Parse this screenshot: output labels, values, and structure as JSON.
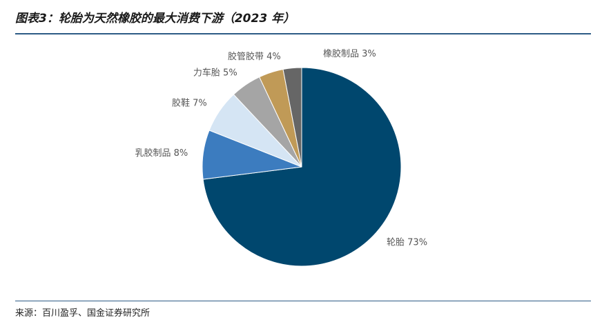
{
  "title": "图表3：轮胎为天然橡胶的最大消费下游（2023 年）",
  "source": "来源：百川盈孚、国金证券研究所",
  "chart_data": {
    "type": "pie",
    "title": "图表3：轮胎为天然橡胶的最大消费下游（2023 年）",
    "start": "top, clockwise",
    "slices": [
      {
        "label": "轮胎",
        "value": 73,
        "text": "轮胎 73%",
        "color": "#00476e"
      },
      {
        "label": "乳胶制品",
        "value": 8,
        "text": "乳胶制品 8%",
        "color": "#3c7cbf"
      },
      {
        "label": "胶鞋",
        "value": 7,
        "text": "胶鞋 7%",
        "color": "#d5e5f4"
      },
      {
        "label": "力车胎",
        "value": 5,
        "text": "力车胎 5%",
        "color": "#a5a5a5"
      },
      {
        "label": "胶管胶带",
        "value": 4,
        "text": "胶管胶带 4%",
        "color": "#c09a57"
      },
      {
        "label": "橡胶制品",
        "value": 3,
        "text": "橡胶制品 3%",
        "color": "#666666"
      }
    ]
  }
}
